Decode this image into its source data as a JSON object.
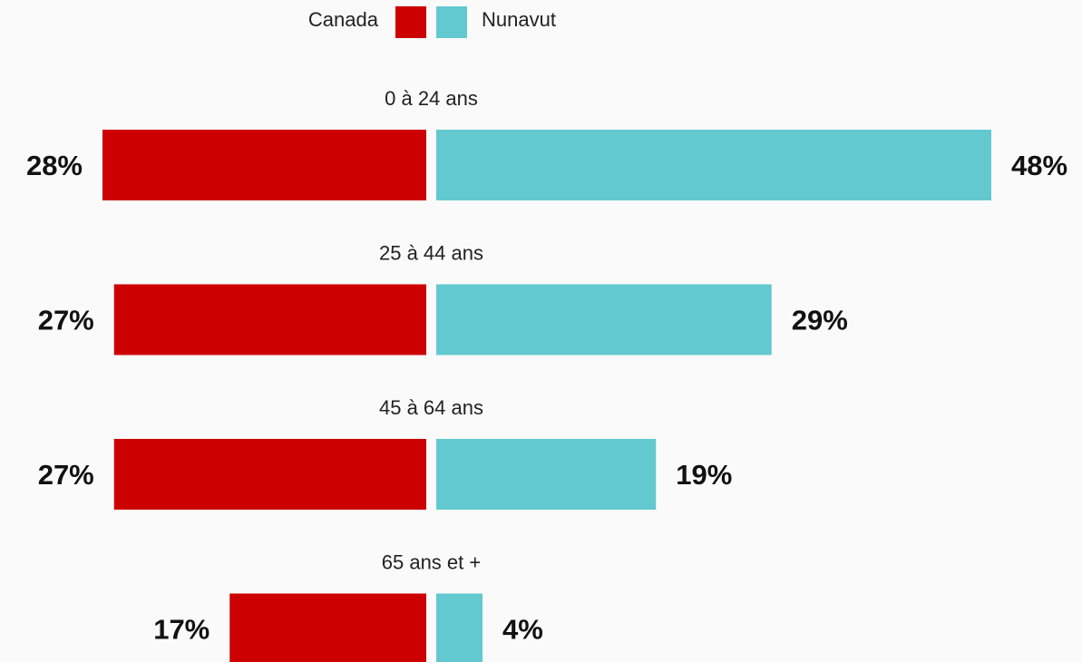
{
  "chart_data": {
    "type": "bar",
    "orientation": "horizontal-diverging",
    "title": "",
    "legend_position": "top-center",
    "categories": [
      "0 à 24 ans",
      "25 à 44 ans",
      "45 à 64 ans",
      "65 ans et +"
    ],
    "series": [
      {
        "name": "Canada",
        "color": "#cc0000",
        "values": [
          28,
          27,
          27,
          17
        ],
        "labels": [
          "28%",
          "27%",
          "27%",
          "17%"
        ]
      },
      {
        "name": "Nunavut",
        "color": "#63c9d0",
        "values": [
          48,
          29,
          19,
          4
        ],
        "labels": [
          "48%",
          "29%",
          "19%",
          "4%"
        ]
      }
    ],
    "unit": "%",
    "grid": false
  }
}
